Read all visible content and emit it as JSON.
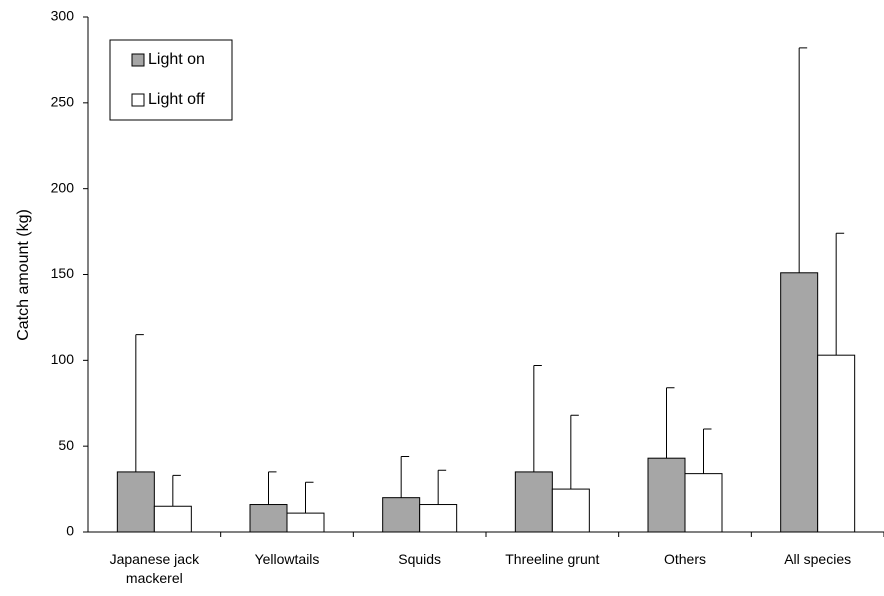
{
  "chart_data": {
    "type": "bar",
    "y_label": "Catch amount (kg)",
    "categories": [
      "Japanese jack mackerel",
      "Yellowtails",
      "Squids",
      "Threeline grunt",
      "Others",
      "All species"
    ],
    "series": [
      {
        "name": "Light on",
        "color": "#a6a6a6",
        "values": [
          35,
          16,
          20,
          35,
          43,
          151
        ],
        "errors": [
          80,
          19,
          24,
          62,
          41,
          131
        ]
      },
      {
        "name": "Light off",
        "color": "#ffffff",
        "values": [
          15,
          11,
          16,
          25,
          34,
          103
        ],
        "errors": [
          18,
          18,
          20,
          43,
          26,
          71
        ]
      }
    ],
    "ylim": [
      0,
      300
    ],
    "yticks": [
      0,
      50,
      100,
      150,
      200,
      250,
      300
    ],
    "grid": false,
    "legend": "top-left"
  }
}
